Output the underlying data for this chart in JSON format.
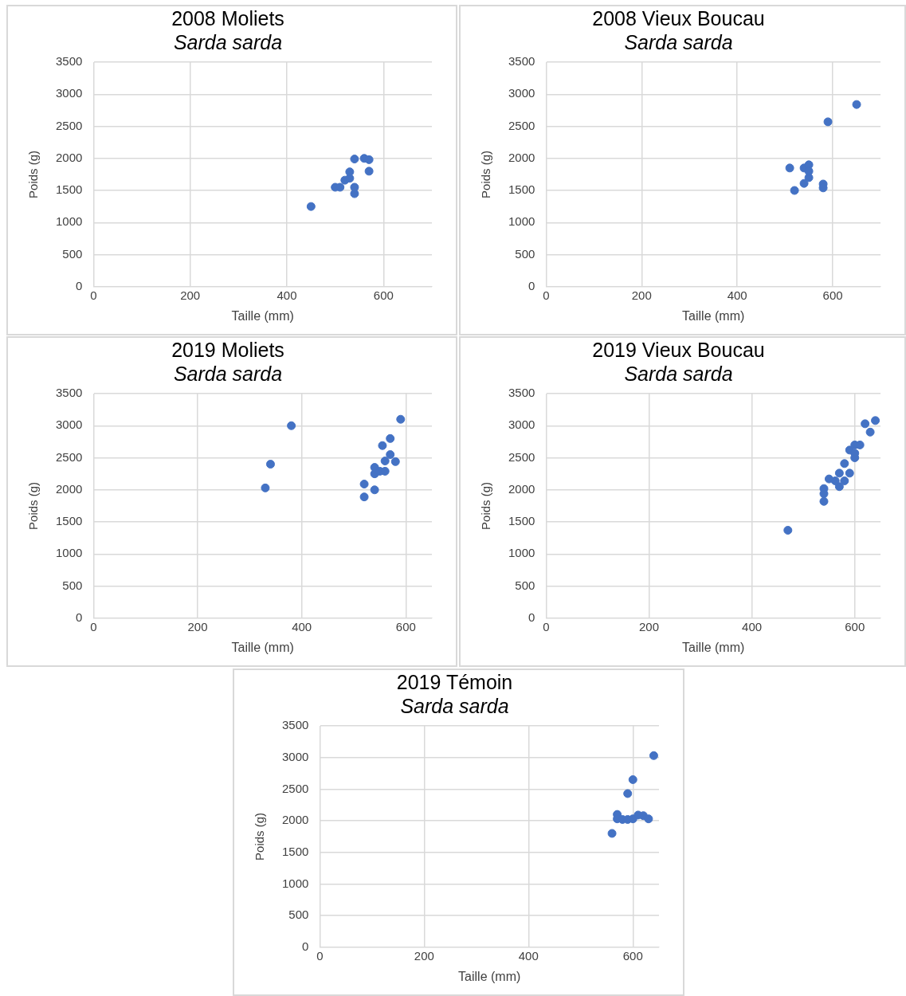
{
  "chart_data": [
    {
      "type": "scatter",
      "title": "2008 Moliets",
      "subtitle": "Sarda sarda",
      "xlabel": "Taille (mm)",
      "ylabel": "Poids (g)",
      "xlim": [
        0,
        700
      ],
      "xticks": [
        0,
        200,
        400,
        600
      ],
      "ylim": [
        0,
        3500
      ],
      "yticks": [
        0,
        500,
        1000,
        1500,
        2000,
        2500,
        3000,
        3500
      ],
      "grid": true,
      "legend": false,
      "marker": "circle",
      "series": [
        {
          "color": "#4472c4",
          "x": [
            450,
            500,
            510,
            520,
            530,
            530,
            540,
            540,
            540,
            560,
            570,
            570
          ],
          "values": [
            1250,
            1550,
            1550,
            1660,
            1690,
            1790,
            1990,
            1550,
            1450,
            2000,
            1980,
            1800
          ]
        }
      ]
    },
    {
      "type": "scatter",
      "title": "2008 Vieux Boucau",
      "subtitle": "Sarda sarda",
      "xlabel": "Taille (mm)",
      "ylabel": "Poids (g)",
      "xlim": [
        0,
        700
      ],
      "xticks": [
        0,
        200,
        400,
        600
      ],
      "ylim": [
        0,
        3500
      ],
      "yticks": [
        0,
        500,
        1000,
        1500,
        2000,
        2500,
        3000,
        3500
      ],
      "grid": true,
      "legend": false,
      "marker": "circle",
      "series": [
        {
          "color": "#4472c4",
          "x": [
            650,
            590,
            510,
            540,
            550,
            550,
            550,
            540,
            520,
            580,
            580
          ],
          "values": [
            2840,
            2570,
            1850,
            1850,
            1900,
            1700,
            1800,
            1610,
            1500,
            1600,
            1540
          ]
        }
      ]
    },
    {
      "type": "scatter",
      "title": "2019 Moliets",
      "subtitle": "Sarda sarda",
      "xlabel": "Taille (mm)",
      "ylabel": "Poids (g)",
      "xlim": [
        0,
        650
      ],
      "xticks": [
        0,
        200,
        400,
        600
      ],
      "ylim": [
        0,
        3500
      ],
      "yticks": [
        0,
        500,
        1000,
        1500,
        2000,
        2500,
        3000,
        3500
      ],
      "grid": true,
      "legend": false,
      "marker": "circle",
      "series": [
        {
          "color": "#4472c4",
          "x": [
            330,
            340,
            380,
            520,
            520,
            540,
            540,
            540,
            550,
            560,
            555,
            560,
            570,
            570,
            580,
            590
          ],
          "values": [
            2030,
            2400,
            3000,
            2090,
            1890,
            2000,
            2350,
            2250,
            2290,
            2290,
            2690,
            2450,
            2550,
            2800,
            2440,
            3100
          ]
        }
      ]
    },
    {
      "type": "scatter",
      "title": "2019 Vieux Boucau",
      "subtitle": "Sarda sarda",
      "xlabel": "Taille (mm)",
      "ylabel": "Poids (g)",
      "xlim": [
        0,
        650
      ],
      "xticks": [
        0,
        200,
        400,
        600
      ],
      "ylim": [
        0,
        3500
      ],
      "yticks": [
        0,
        500,
        1000,
        1500,
        2000,
        2500,
        3000,
        3500
      ],
      "grid": true,
      "legend": false,
      "marker": "circle",
      "series": [
        {
          "color": "#4472c4",
          "x": [
            470,
            540,
            540,
            540,
            550,
            570,
            570,
            580,
            580,
            590,
            590,
            600,
            600,
            600,
            610,
            620,
            630,
            640,
            562
          ],
          "values": [
            1370,
            2020,
            1940,
            1820,
            2170,
            2050,
            2260,
            2140,
            2410,
            2260,
            2620,
            2500,
            2570,
            2700,
            2700,
            3030,
            2900,
            3080,
            2140
          ]
        }
      ]
    },
    {
      "type": "scatter",
      "title": "2019 Témoin",
      "subtitle": "Sarda sarda",
      "xlabel": "Taille (mm)",
      "ylabel": "Poids (g)",
      "xlim": [
        0,
        650
      ],
      "xticks": [
        0,
        200,
        400,
        600
      ],
      "ylim": [
        0,
        3500
      ],
      "yticks": [
        0,
        500,
        1000,
        1500,
        2000,
        2500,
        3000,
        3500
      ],
      "grid": true,
      "legend": false,
      "marker": "circle",
      "series": [
        {
          "color": "#4472c4",
          "x": [
            560,
            570,
            570,
            580,
            590,
            600,
            610,
            620,
            630,
            590,
            600,
            640
          ],
          "values": [
            1800,
            2100,
            2030,
            2020,
            2020,
            2030,
            2090,
            2080,
            2030,
            2430,
            2650,
            3030
          ]
        }
      ]
    }
  ]
}
